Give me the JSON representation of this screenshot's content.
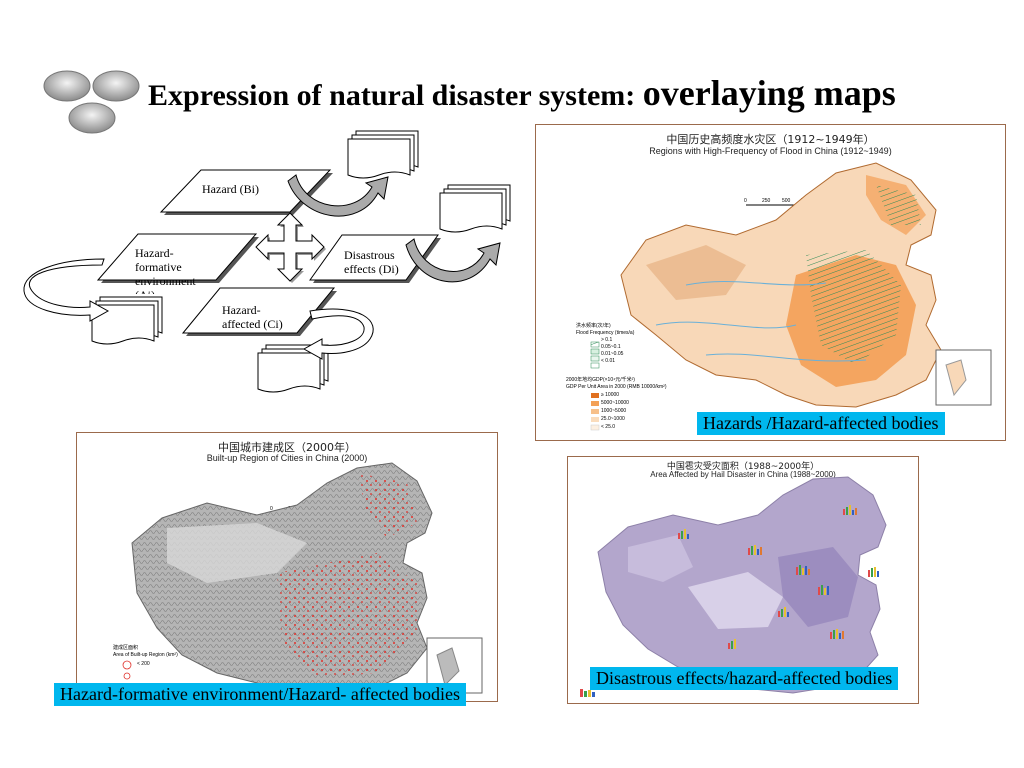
{
  "slide": {
    "title_main": "Expression of natural disaster system: ",
    "title_emphasis": "overlaying maps"
  },
  "diagram": {
    "hazard": "Hazard (Bi)",
    "formative_line1": "Hazard-",
    "formative_line2": "formative",
    "formative_line3": "environment",
    "formative_line4": "(Ai)",
    "affected_line1": "Hazard-",
    "affected_line2": "affected (Ci)",
    "disastrous_line1": "Disastrous",
    "disastrous_line2": "effects  (Di)"
  },
  "maps": {
    "flood": {
      "title_cn": "中国历史高频度水灾区（1912~1949年）",
      "title_en": "Regions with High-Frequency of Flood in China (1912~1949)",
      "legend_freq_cn": "洪水频率(次/年)",
      "legend_freq_en": "Flood Frequency (times/a)",
      "legend_freq_items": [
        "> 0.1",
        "0.05~0.1",
        "0.01~0.05",
        "< 0.01"
      ],
      "legend_gdp_cn": "2000年地均GDP(×10⁴元/千米²)",
      "legend_gdp_en": "GDP Per Unit Area in 2000 (RMB 10000/km²)",
      "legend_gdp_items": [
        "≥ 10000",
        "5000~10000",
        "1000~5000",
        "25.0~1000",
        "< 25.0"
      ],
      "caption": "Hazards /Hazard-affected bodies"
    },
    "cities": {
      "title_cn": "中国城市建成区（2000年）",
      "title_en": "Built-up Region of Cities in China (2000)",
      "legend_cn": "建成区面积",
      "legend_en": "Area of Built-up Region (km²)",
      "legend_item": "< 200",
      "caption": "Hazard-formative environment/Hazard- affected bodies"
    },
    "hail": {
      "title_cn": "中国雹灾受灾面积（1988~2000年）",
      "title_en": "Area Affected by Hail Disaster in China (1988~2000)",
      "caption": "Disastrous effects/hazard-affected bodies"
    }
  },
  "colors": {
    "caption_bg": "#00b7ee",
    "flood_orange": "#f3a056",
    "cities_gray": "#9a9a9a",
    "cities_red": "#e0302a",
    "hail_purple": "#b3a6cc",
    "frame": "#9b6a4c"
  }
}
